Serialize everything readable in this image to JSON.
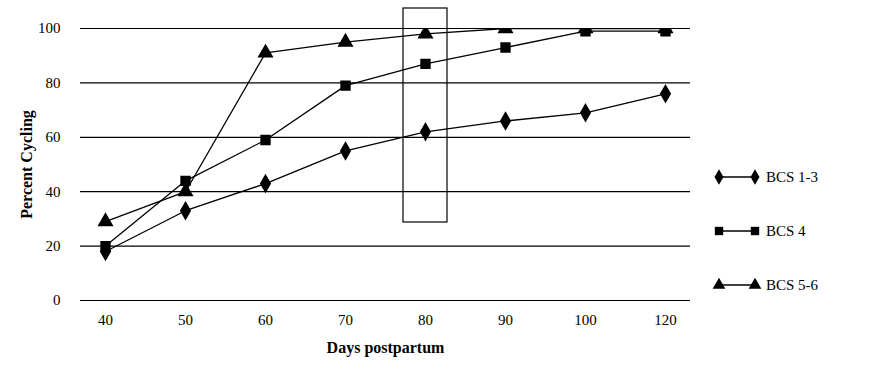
{
  "chart_data": {
    "type": "line",
    "x_label": "Days postpartum",
    "y_label": "Percent Cycling",
    "categories": [
      "40",
      "50",
      "60",
      "70",
      "80",
      "90",
      "100",
      "120"
    ],
    "series": [
      {
        "name": "BCS 1-3",
        "color": "#000000",
        "marker": "diamond",
        "values": [
          18,
          33,
          43,
          55,
          62,
          66,
          69,
          76
        ]
      },
      {
        "name": "BCS 4",
        "color": "#000000",
        "marker": "square",
        "values": [
          20,
          44,
          59,
          79,
          87,
          93,
          99,
          99
        ]
      },
      {
        "name": "BCS 5-6",
        "color": "#000000",
        "marker": "triangle",
        "values": [
          29,
          40,
          91,
          95,
          98,
          100,
          100,
          100
        ]
      }
    ],
    "ylim": [
      0,
      100
    ],
    "yticks": [
      0,
      20,
      40,
      60,
      80,
      100
    ],
    "grid": true,
    "legend": "right"
  }
}
